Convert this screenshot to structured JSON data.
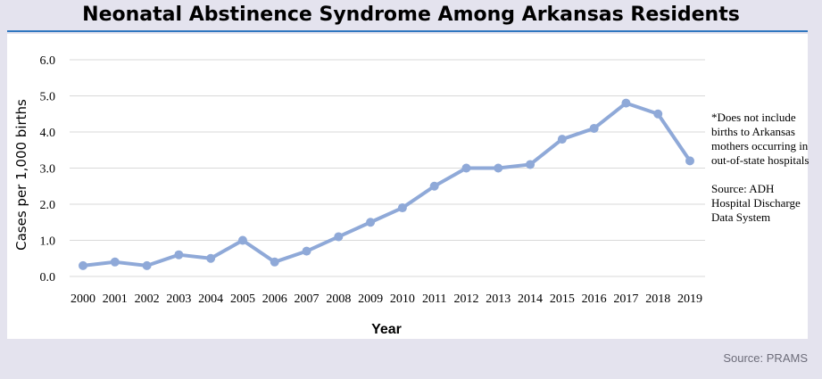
{
  "header": {
    "title": "Neonatal Abstinence Syndrome Among Arkansas Residents"
  },
  "note": {
    "exclusion": "*Does not include births to Arkansas mothers occurring in out-of-state hospitals",
    "source": "Source: ADH Hospital Discharge Data System"
  },
  "footer": {
    "source": "Source: PRAMS"
  },
  "colors": {
    "line": "#8fa9d8",
    "marker": "#8fa9d8",
    "grid": "#d9d9d9",
    "title_rule": "#2f76bf"
  },
  "chart_data": {
    "type": "line",
    "title": "Neonatal Abstinence Syndrome Among Arkansas Residents",
    "xlabel": "Year",
    "ylabel": "Cases per 1,000 births",
    "categories": [
      "2000",
      "2001",
      "2002",
      "2003",
      "2004",
      "2005",
      "2006",
      "2007",
      "2008",
      "2009",
      "2010",
      "2011",
      "2012",
      "2013",
      "2014",
      "2015",
      "2016",
      "2017",
      "2018",
      "2019"
    ],
    "series": [
      {
        "values": [
          0.3,
          0.4,
          0.3,
          0.6,
          0.5,
          1.0,
          0.4,
          0.7,
          1.1,
          1.5,
          1.9,
          2.5,
          3.0,
          3.0,
          3.1,
          3.8,
          4.1,
          4.8,
          4.5,
          3.2
        ]
      }
    ],
    "ylim": [
      0,
      6
    ],
    "yticks": [
      "0.0",
      "1.0",
      "2.0",
      "3.0",
      "4.0",
      "5.0",
      "6.0"
    ],
    "grid": true,
    "legend": "none"
  }
}
